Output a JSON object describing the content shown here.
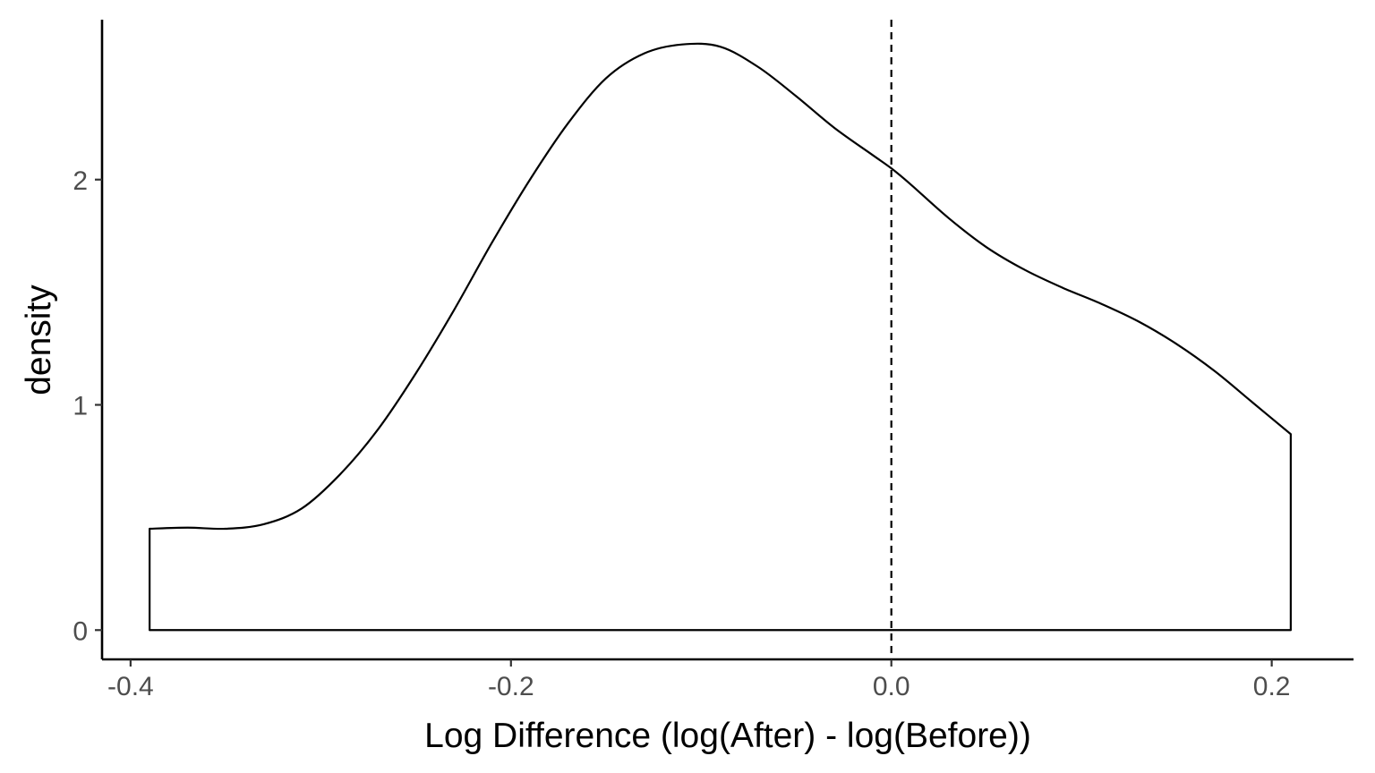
{
  "chart_data": {
    "type": "area",
    "title": "",
    "xlabel": "Log Difference (log(After) - log(Before))",
    "ylabel": "density",
    "xlim": [
      -0.415,
      0.243
    ],
    "ylim": [
      -0.13,
      2.71
    ],
    "x_ticks": [
      {
        "value": -0.4,
        "label": "-0.4"
      },
      {
        "value": -0.2,
        "label": "-0.2"
      },
      {
        "value": 0.0,
        "label": "0.0"
      },
      {
        "value": 0.2,
        "label": "0.2"
      }
    ],
    "y_ticks": [
      {
        "value": 0,
        "label": "0"
      },
      {
        "value": 1,
        "label": "1"
      },
      {
        "value": 2,
        "label": "2"
      }
    ],
    "grid": false,
    "legend": "none",
    "series": [
      {
        "x": [
          -0.39,
          -0.37,
          -0.35,
          -0.33,
          -0.31,
          -0.29,
          -0.27,
          -0.25,
          -0.23,
          -0.21,
          -0.19,
          -0.17,
          -0.15,
          -0.13,
          -0.11,
          -0.09,
          -0.07,
          -0.05,
          -0.03,
          -0.01,
          0.0,
          0.01,
          0.03,
          0.05,
          0.07,
          0.09,
          0.11,
          0.13,
          0.15,
          0.17,
          0.19,
          0.21
        ],
        "y": [
          0.45,
          0.455,
          0.45,
          0.47,
          0.54,
          0.69,
          0.89,
          1.14,
          1.42,
          1.72,
          2.0,
          2.25,
          2.45,
          2.56,
          2.6,
          2.59,
          2.5,
          2.37,
          2.23,
          2.11,
          2.05,
          1.98,
          1.83,
          1.7,
          1.6,
          1.52,
          1.45,
          1.37,
          1.27,
          1.15,
          1.01,
          0.87
        ]
      }
    ],
    "reference_lines": [
      {
        "axis": "x",
        "value": 0.0,
        "style": "dashed"
      }
    ]
  }
}
